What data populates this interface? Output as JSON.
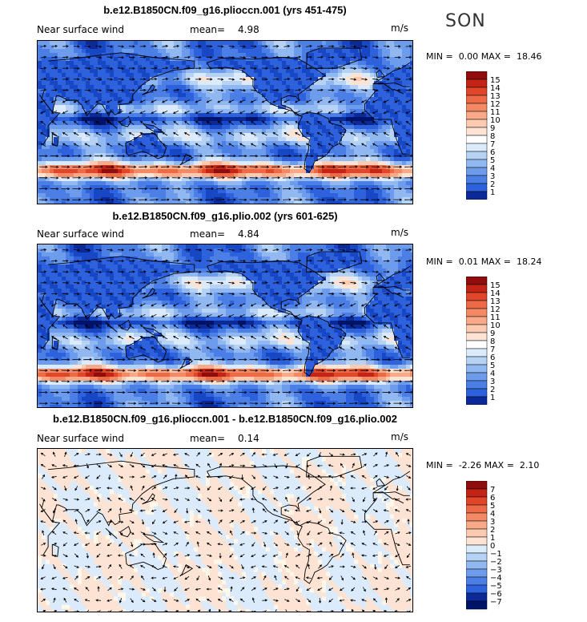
{
  "season": "SON",
  "colors": {
    "pos": [
      "#fde3d3",
      "#fbcab0",
      "#f8aa88",
      "#f38a65",
      "#ec6a46",
      "#e0462a",
      "#c32416",
      "#8f0d0d"
    ],
    "neg": [
      "#dbebfb",
      "#b6d3f5",
      "#92b8f1",
      "#6e9ced",
      "#4b7fe6",
      "#2e62dd",
      "#1847c6",
      "#0b2a97",
      "#00136b"
    ],
    "neutral": "#fff7ea",
    "coast": "#000000",
    "arrow": "#000000"
  },
  "panels": [
    {
      "title": "b.e12.B1850CN.f09_g16.plioccn.001 (yrs 451-475)",
      "variable": "Near surface wind",
      "mean_label": "mean=",
      "mean_value": "4.98",
      "units": "m/s",
      "min_label": "MIN =",
      "min_value": "0.00",
      "max_label": "MAX =",
      "max_value": "18.46",
      "colorbar_levels": [
        "15",
        "14",
        "13",
        "12",
        "11",
        "10",
        "9",
        "8",
        "7",
        "6",
        "5",
        "4",
        "3",
        "2",
        "1"
      ]
    },
    {
      "title": "b.e12.B1850CN.f09_g16.plio.002 (yrs 601-625)",
      "variable": "Near surface wind",
      "mean_label": "mean=",
      "mean_value": "4.84",
      "units": "m/s",
      "min_label": "MIN =",
      "min_value": "0.01",
      "max_label": "MAX =",
      "max_value": "18.24",
      "colorbar_levels": [
        "15",
        "14",
        "13",
        "12",
        "11",
        "10",
        "9",
        "8",
        "7",
        "6",
        "5",
        "4",
        "3",
        "2",
        "1"
      ]
    },
    {
      "title": "b.e12.B1850CN.f09_g16.plioccn.001 - b.e12.B1850CN.f09_g16.plio.002",
      "variable": "Near surface wind",
      "mean_label": "mean=",
      "mean_value": "0.14",
      "units": "m/s",
      "min_label": "MIN =",
      "min_value": "-2.26",
      "max_label": "MAX =",
      "max_value": "2.10",
      "colorbar_levels": [
        "7",
        "6",
        "5",
        "4",
        "3",
        "2",
        "1",
        "0",
        "−1",
        "−2",
        "−3",
        "−4",
        "−5",
        "−6",
        "−7"
      ]
    }
  ],
  "chart_data": [
    {
      "type": "heatmap",
      "title": "b.e12.B1850CN.f09_g16.plioccn.001 (yrs 451-475)",
      "variable": "Near surface wind",
      "units": "m/s",
      "mean": 4.98,
      "min": 0.0,
      "max": 18.46,
      "contour_levels": [
        1,
        2,
        3,
        4,
        5,
        6,
        7,
        8,
        9,
        10,
        11,
        12,
        13,
        14,
        15
      ],
      "overlay": "wind vectors",
      "projection": "global lat-lon"
    },
    {
      "type": "heatmap",
      "title": "b.e12.B1850CN.f09_g16.plio.002 (yrs 601-625)",
      "variable": "Near surface wind",
      "units": "m/s",
      "mean": 4.84,
      "min": 0.01,
      "max": 18.24,
      "contour_levels": [
        1,
        2,
        3,
        4,
        5,
        6,
        7,
        8,
        9,
        10,
        11,
        12,
        13,
        14,
        15
      ],
      "overlay": "wind vectors",
      "projection": "global lat-lon"
    },
    {
      "type": "heatmap",
      "title": "b.e12.B1850CN.f09_g16.plioccn.001 - b.e12.B1850CN.f09_g16.plio.002",
      "variable": "Near surface wind",
      "units": "m/s",
      "mean": 0.14,
      "min": -2.26,
      "max": 2.1,
      "contour_levels": [
        -7,
        -6,
        -5,
        -4,
        -3,
        -2,
        -1,
        0,
        1,
        2,
        3,
        4,
        5,
        6,
        7
      ],
      "overlay": "wind vectors",
      "projection": "global lat-lon"
    }
  ]
}
